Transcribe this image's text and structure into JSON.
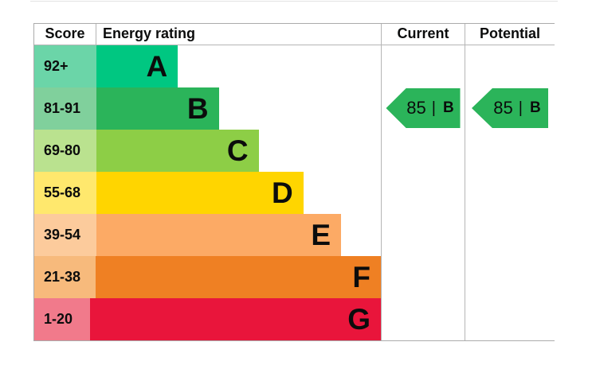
{
  "header": {
    "score": "Score",
    "energy_rating": "Energy rating",
    "current": "Current",
    "potential": "Potential"
  },
  "colors": {
    "border": "#ababab",
    "text": "#0b0c0c",
    "background": "#ffffff"
  },
  "chart_data": {
    "type": "bar",
    "orientation": "horizontal",
    "columns": [
      "Score",
      "Energy rating",
      "Current",
      "Potential"
    ],
    "bands": [
      {
        "letter": "A",
        "score": "92+",
        "color": "#00c781",
        "score_tint": "#6bd5a8",
        "width_pct": 23.5
      },
      {
        "letter": "B",
        "score": "81-91",
        "color": "#2bb45a",
        "score_tint": "#80d09c",
        "width_pct": 35.3
      },
      {
        "letter": "C",
        "score": "69-80",
        "color": "#8dce46",
        "score_tint": "#bae28f",
        "width_pct": 46.8
      },
      {
        "letter": "D",
        "score": "55-68",
        "color": "#ffd500",
        "score_tint": "#ffe86d",
        "width_pct": 59.7
      },
      {
        "letter": "E",
        "score": "39-54",
        "color": "#fcaa65",
        "score_tint": "#fccb9c",
        "width_pct": 70.6
      },
      {
        "letter": "F",
        "score": "21-38",
        "color": "#ef8023",
        "score_tint": "#f7ba7c",
        "width_pct": 82.9
      },
      {
        "letter": "G",
        "score": "1-20",
        "color": "#e9153b",
        "score_tint": "#f17a8b",
        "width_pct": 94.4
      }
    ],
    "current": {
      "value": "85",
      "separator": "|",
      "band": "B",
      "band_index": 1,
      "arrow_color": "#2bb45a"
    },
    "potential": {
      "value": "85",
      "separator": "|",
      "band": "B",
      "band_index": 1,
      "arrow_color": "#2bb45a"
    }
  }
}
